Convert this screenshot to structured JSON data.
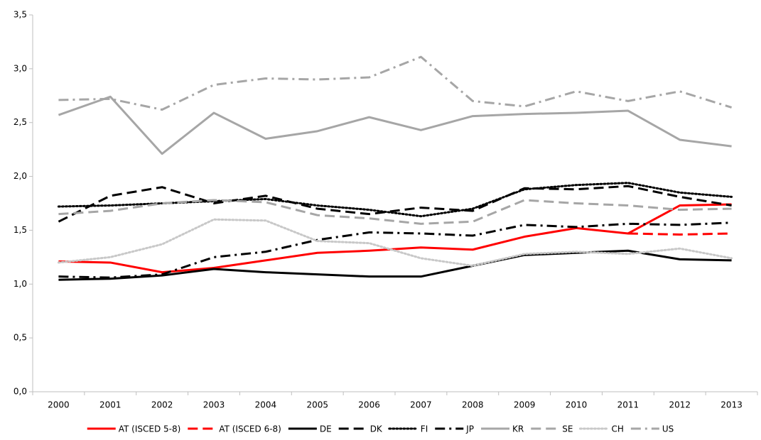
{
  "chart_data": {
    "type": "line",
    "categories": [
      "2000",
      "2001",
      "2002",
      "2003",
      "2004",
      "2005",
      "2006",
      "2007",
      "2008",
      "2009",
      "2010",
      "2011",
      "2012",
      "2013"
    ],
    "ylim": [
      0,
      3.5
    ],
    "yticks": [
      {
        "value": 0,
        "label": "0,0"
      },
      {
        "value": 0.5,
        "label": "0,5"
      },
      {
        "value": 1,
        "label": "1,0"
      },
      {
        "value": 1.5,
        "label": "1,5"
      },
      {
        "value": 2,
        "label": "2,0"
      },
      {
        "value": 2.5,
        "label": "2,5"
      },
      {
        "value": 3,
        "label": "3,0"
      },
      {
        "value": 3.5,
        "label": "3,5"
      }
    ],
    "grid": false,
    "legend": "bottom",
    "series": [
      {
        "name": "AT (ISCED 5-8)",
        "color": "#ff0000",
        "dash": "solid",
        "values": [
          1.21,
          1.2,
          1.11,
          1.15,
          1.22,
          1.29,
          1.31,
          1.34,
          1.32,
          1.44,
          1.52,
          1.47,
          1.73,
          1.74
        ]
      },
      {
        "name": "AT (ISCED 6-8)",
        "color": "#ff0000",
        "dash": "dashed",
        "values": [
          null,
          null,
          null,
          null,
          null,
          null,
          null,
          null,
          null,
          null,
          null,
          1.47,
          1.46,
          1.47
        ]
      },
      {
        "name": "DE",
        "color": "#000000",
        "dash": "solid",
        "values": [
          1.04,
          1.05,
          1.08,
          1.14,
          1.11,
          1.09,
          1.07,
          1.07,
          1.17,
          1.27,
          1.29,
          1.31,
          1.23,
          1.22
        ]
      },
      {
        "name": "DK",
        "color": "#000000",
        "dash": "dashed",
        "values": [
          1.58,
          1.82,
          1.9,
          1.75,
          1.82,
          1.7,
          1.65,
          1.71,
          1.68,
          1.89,
          1.88,
          1.91,
          1.81,
          1.73
        ]
      },
      {
        "name": "FI",
        "color": "#000000",
        "dash": "dotted",
        "values": [
          1.72,
          1.73,
          1.75,
          1.77,
          1.79,
          1.73,
          1.69,
          1.63,
          1.7,
          1.88,
          1.92,
          1.94,
          1.85,
          1.81
        ]
      },
      {
        "name": "JP",
        "color": "#000000",
        "dash": "dashdot",
        "values": [
          1.07,
          1.06,
          1.09,
          1.25,
          1.3,
          1.41,
          1.48,
          1.47,
          1.45,
          1.55,
          1.53,
          1.56,
          1.55,
          1.57
        ]
      },
      {
        "name": "KR",
        "color": "#a6a6a6",
        "dash": "solid",
        "values": [
          2.57,
          2.74,
          2.21,
          2.59,
          2.35,
          2.42,
          2.55,
          2.43,
          2.56,
          2.58,
          2.59,
          2.61,
          2.34,
          2.28
        ]
      },
      {
        "name": "SE",
        "color": "#a6a6a6",
        "dash": "dashed",
        "values": [
          1.65,
          1.68,
          1.75,
          1.78,
          1.76,
          1.64,
          1.61,
          1.56,
          1.58,
          1.78,
          1.75,
          1.73,
          1.69,
          1.7
        ]
      },
      {
        "name": "CH",
        "color": "#c8c8c8",
        "dash": "dotted",
        "values": [
          1.2,
          1.25,
          1.37,
          1.6,
          1.59,
          1.4,
          1.38,
          1.24,
          1.17,
          1.28,
          1.3,
          1.28,
          1.33,
          1.24
        ]
      },
      {
        "name": "US",
        "color": "#a6a6a6",
        "dash": "dashdot",
        "values": [
          2.71,
          2.72,
          2.62,
          2.85,
          2.91,
          2.9,
          2.92,
          3.11,
          2.7,
          2.65,
          2.79,
          2.7,
          2.79,
          2.64
        ]
      }
    ]
  }
}
